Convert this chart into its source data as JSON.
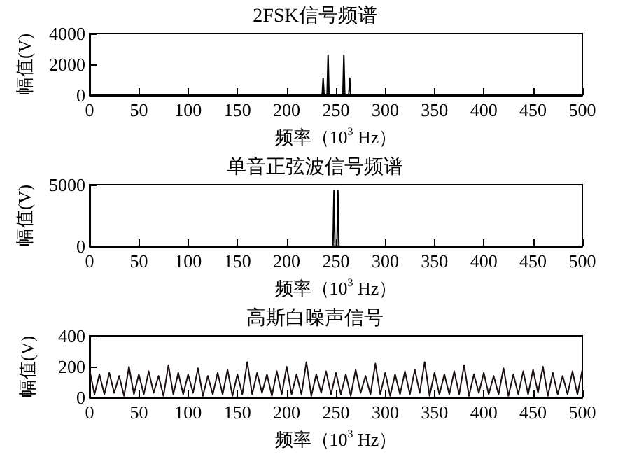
{
  "chart_data": [
    {
      "type": "line",
      "title": "2FSK信号频谱",
      "xlabel": "频率（10$^{3}$ Hz）",
      "ylabel": "幅值(V)",
      "color": "#000000",
      "x": [
        0,
        230,
        236,
        237,
        238,
        241,
        242,
        243,
        250,
        257,
        258,
        259,
        263,
        264,
        265,
        270,
        500
      ],
      "values": [
        0,
        0,
        0,
        1100,
        0,
        0,
        2600,
        0,
        0,
        0,
        2600,
        0,
        0,
        1100,
        0,
        0,
        0
      ],
      "xlim": [
        0,
        500
      ],
      "xticks": [
        0,
        50,
        100,
        150,
        200,
        250,
        300,
        350,
        400,
        450,
        500
      ],
      "ylim": [
        0,
        4000
      ],
      "yticks": [
        0,
        2000,
        4000
      ],
      "grid": false
    },
    {
      "type": "line",
      "title": "单音正弦波信号频谱",
      "xlabel": "频率（10$^{3}$ Hz）",
      "ylabel": "幅值(V)",
      "color": "#000000",
      "x": [
        0,
        247,
        248,
        249,
        251,
        252,
        253,
        500
      ],
      "values": [
        0,
        0,
        4500,
        0,
        0,
        4500,
        0,
        0
      ],
      "xlim": [
        0,
        500
      ],
      "xticks": [
        0,
        50,
        100,
        150,
        200,
        250,
        300,
        350,
        400,
        450,
        500
      ],
      "ylim": [
        0,
        5000
      ],
      "yticks": [
        0,
        5000
      ],
      "grid": false
    },
    {
      "type": "line",
      "title": "高斯白噪声信号",
      "xlabel": "频率（10$^{3}$ Hz）",
      "ylabel": "幅值(V)",
      "color": "#1a1010",
      "x": [
        0,
        5,
        10,
        15,
        20,
        25,
        30,
        35,
        40,
        45,
        50,
        55,
        60,
        65,
        70,
        75,
        80,
        85,
        90,
        95,
        100,
        105,
        110,
        115,
        120,
        125,
        130,
        135,
        140,
        145,
        150,
        155,
        160,
        165,
        170,
        175,
        180,
        185,
        190,
        195,
        200,
        205,
        210,
        215,
        220,
        225,
        230,
        235,
        240,
        245,
        250,
        255,
        260,
        265,
        270,
        275,
        280,
        285,
        290,
        295,
        300,
        305,
        310,
        315,
        320,
        325,
        330,
        335,
        340,
        345,
        350,
        355,
        360,
        365,
        370,
        375,
        380,
        385,
        390,
        395,
        400,
        405,
        410,
        415,
        420,
        425,
        430,
        435,
        440,
        445,
        450,
        455,
        460,
        465,
        470,
        475,
        480,
        485,
        490,
        495,
        500
      ],
      "values": [
        180,
        20,
        150,
        20,
        160,
        30,
        140,
        10,
        200,
        20,
        150,
        20,
        170,
        30,
        140,
        10,
        210,
        20,
        160,
        20,
        150,
        30,
        190,
        10,
        140,
        20,
        160,
        20,
        180,
        10,
        150,
        20,
        230,
        20,
        160,
        30,
        150,
        10,
        170,
        20,
        200,
        20,
        150,
        20,
        230,
        10,
        150,
        30,
        170,
        20,
        160,
        20,
        150,
        10,
        180,
        30,
        140,
        20,
        220,
        20,
        160,
        10,
        150,
        20,
        170,
        20,
        180,
        30,
        230,
        10,
        160,
        20,
        150,
        20,
        170,
        20,
        210,
        10,
        150,
        30,
        160,
        20,
        140,
        20,
        190,
        10,
        150,
        20,
        170,
        20,
        180,
        30,
        200,
        10,
        160,
        20,
        140,
        20,
        170,
        20,
        180
      ],
      "xlim": [
        0,
        500
      ],
      "xticks": [
        0,
        50,
        100,
        150,
        200,
        250,
        300,
        350,
        400,
        450,
        500
      ],
      "ylim": [
        0,
        400
      ],
      "yticks": [
        0,
        200,
        400
      ],
      "grid": false
    }
  ]
}
